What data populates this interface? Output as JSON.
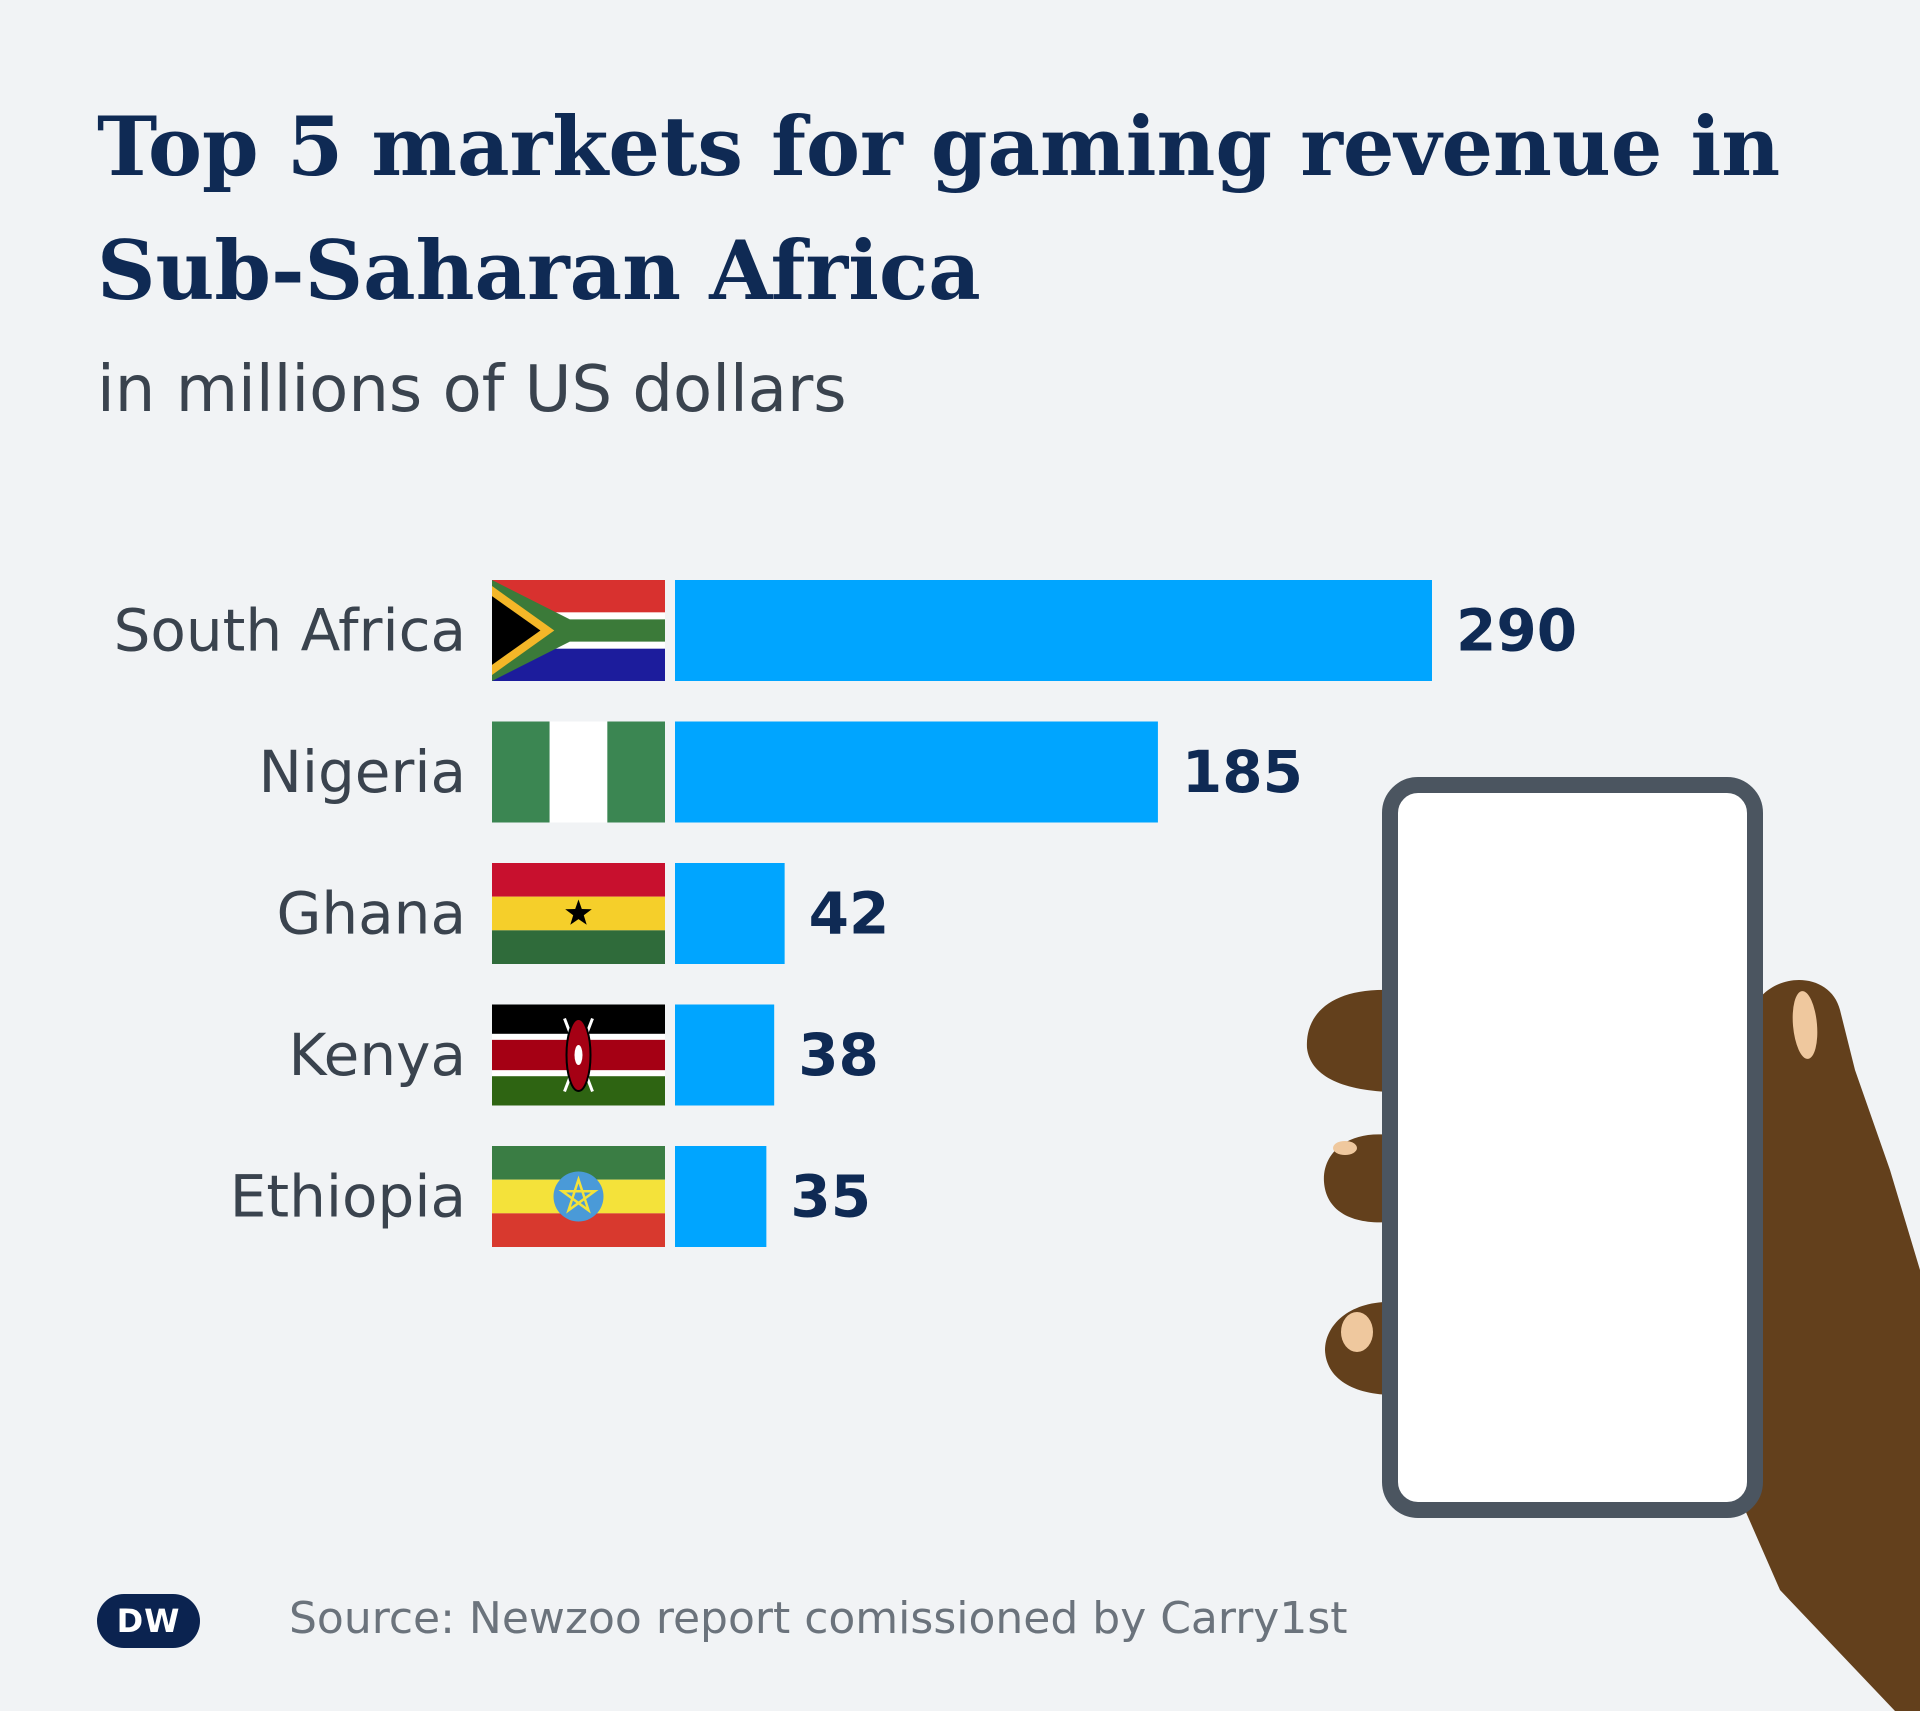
{
  "title": "Top 5 markets for gaming revenue in Sub-Saharan Africa",
  "subtitle": "in millions of US dollars",
  "source": "Source: Newzoo report comissioned by Carry1st",
  "logo_text": "DW",
  "colors": {
    "background": "#f1f3f5",
    "bar": "#00a5ff",
    "title": "#0f2a54",
    "value_label": "#0f2a54",
    "category_label": "#3a434e"
  },
  "chart_data": {
    "type": "bar",
    "orientation": "horizontal",
    "title": "Top 5 markets for gaming revenue in Sub-Saharan Africa",
    "subtitle": "in millions of US dollars",
    "categories": [
      "South Africa",
      "Nigeria",
      "Ghana",
      "Kenya",
      "Ethiopia"
    ],
    "values": [
      290,
      185,
      42,
      38,
      35
    ],
    "flags": [
      "south-africa-flag",
      "nigeria-flag",
      "ghana-flag",
      "kenya-flag",
      "ethiopia-flag"
    ],
    "xlim": [
      0,
      290
    ],
    "grid": false,
    "legend": "none",
    "data_labels": true
  }
}
